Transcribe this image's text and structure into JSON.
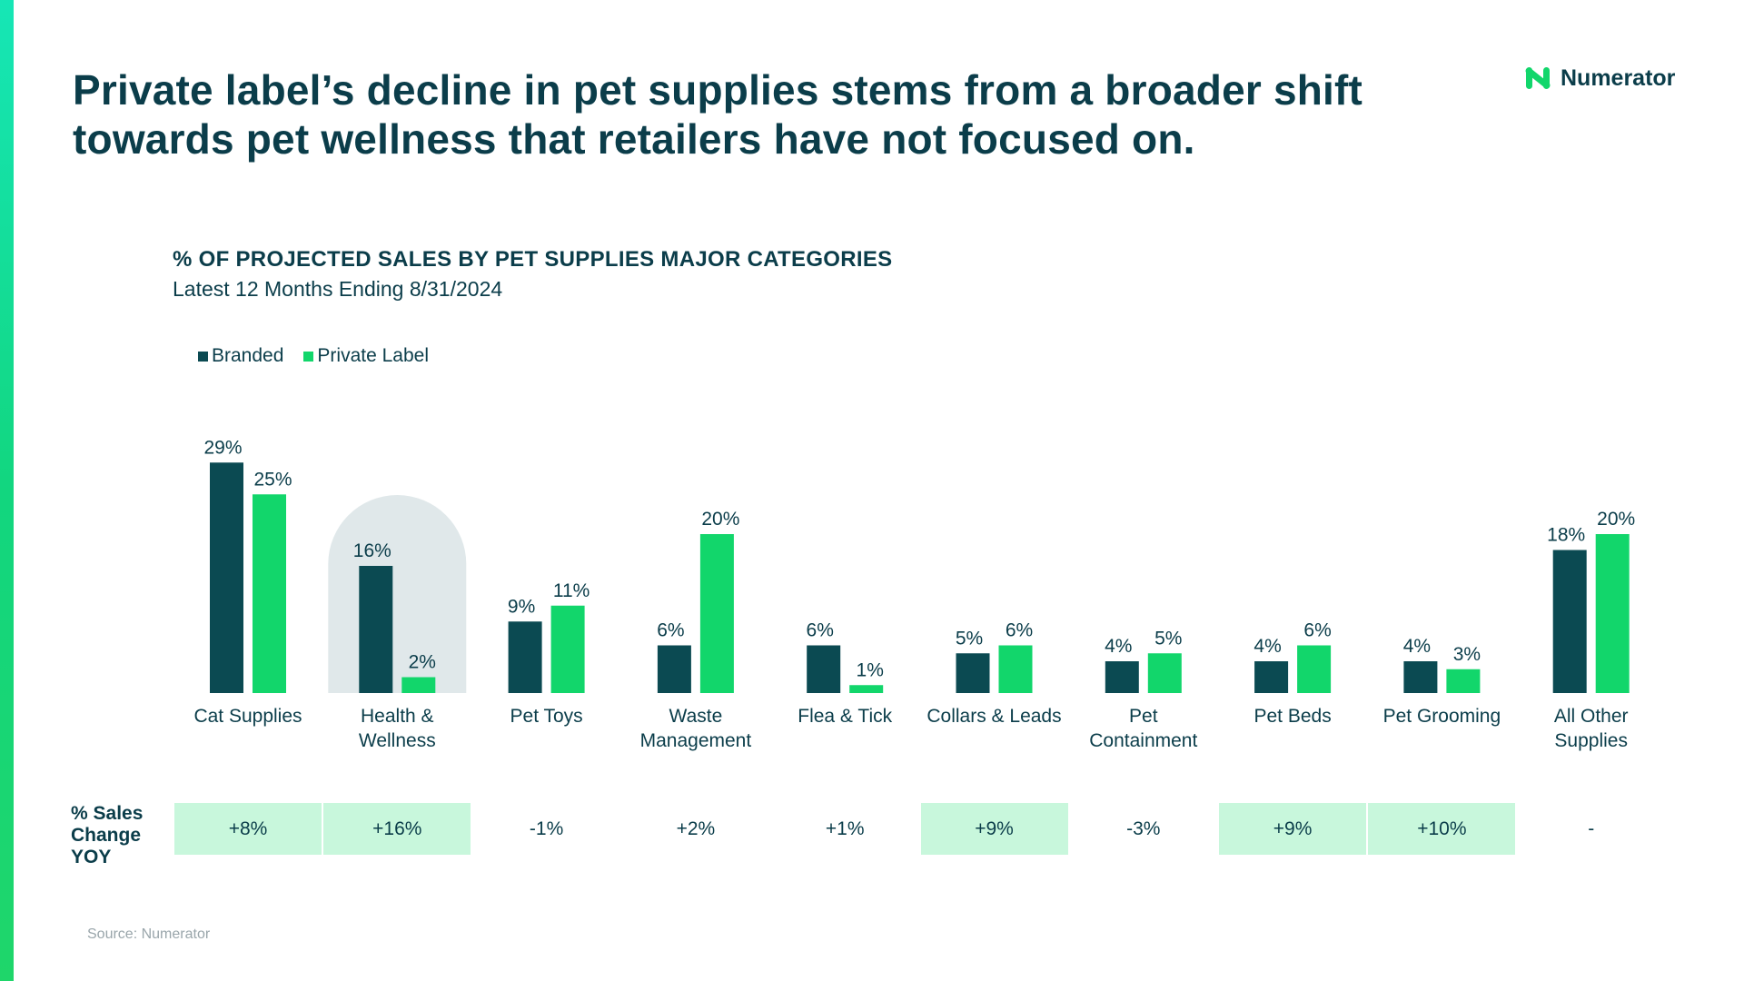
{
  "headline": {
    "line1": "Private label’s decline in pet supplies stems from a broader shift",
    "line2": "towards pet wellness that retailers have not focused on."
  },
  "logo": {
    "text": "Numerator",
    "icon": "numerator-n-logo"
  },
  "colors": {
    "branded": "#0b4a52",
    "private_label": "#12d66b",
    "highlight_column": "#e0e8ea",
    "yoy_positive_bg": "#c8f7dc",
    "text": "#0b3d4a"
  },
  "chart_data": {
    "type": "bar",
    "title": "% OF PROJECTED SALES BY PET SUPPLIES MAJOR CATEGORIES",
    "subtitle": "Latest 12 Months Ending 8/31/2024",
    "legend_placement": "top-left",
    "grid": false,
    "categories": [
      [
        "Cat Supplies"
      ],
      [
        "Health &",
        "Wellness"
      ],
      [
        "Pet Toys"
      ],
      [
        "Waste",
        "Management"
      ],
      [
        "Flea & Tick"
      ],
      [
        "Collars & Leads"
      ],
      [
        "Pet",
        "Containment"
      ],
      [
        "Pet Beds"
      ],
      [
        "Pet Grooming"
      ],
      [
        "All Other",
        "Supplies"
      ]
    ],
    "series": [
      {
        "name": "Branded",
        "values": [
          29,
          16,
          9,
          6,
          6,
          5,
          4,
          4,
          4,
          18
        ],
        "labels": [
          "29%",
          "16%",
          "9%",
          "6%",
          "6%",
          "5%",
          "4%",
          "4%",
          "4%",
          "18%"
        ]
      },
      {
        "name": "Private Label",
        "values": [
          25,
          2,
          11,
          20,
          1,
          6,
          5,
          6,
          3,
          20
        ],
        "labels": [
          "25%",
          "2%",
          "11%",
          "20%",
          "1%",
          "6%",
          "5%",
          "6%",
          "3%",
          "20%"
        ]
      }
    ],
    "ylim": [
      0,
      30
    ],
    "highlighted_category": "Health & Wellness"
  },
  "yoy": {
    "label": "% Sales Change YOY",
    "values": [
      "+8%",
      "+16%",
      "-1%",
      "+2%",
      "+1%",
      "+9%",
      "-3%",
      "+9%",
      "+10%",
      "-"
    ],
    "highlighted": [
      true,
      true,
      false,
      false,
      false,
      true,
      false,
      true,
      true,
      false
    ]
  },
  "source": "Source: Numerator"
}
